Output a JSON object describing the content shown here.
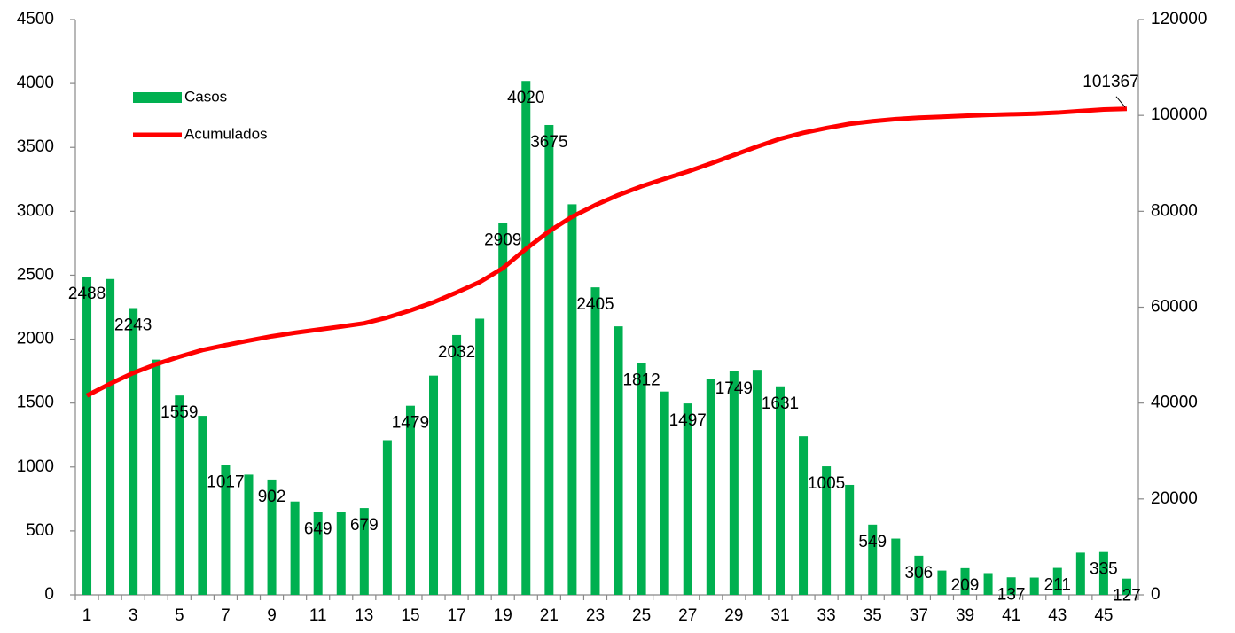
{
  "chart_data": {
    "type": "bar_line",
    "categories": [
      "1",
      null,
      "3",
      null,
      "5",
      null,
      "7",
      null,
      "9",
      null,
      "11",
      null,
      "13",
      null,
      "15",
      null,
      "17",
      null,
      "19",
      null,
      "21",
      null,
      "23",
      null,
      "25",
      null,
      "27",
      null,
      "29",
      null,
      "31",
      null,
      "33",
      null,
      "35",
      null,
      "37",
      null,
      "39",
      null,
      "41",
      null,
      "43",
      null,
      "45",
      null
    ],
    "series": [
      {
        "name": "Casos",
        "color": "#00b050",
        "kind": "bar",
        "values": [
          2488,
          2470,
          2243,
          1840,
          1559,
          1400,
          1017,
          940,
          902,
          730,
          649,
          650,
          679,
          1210,
          1479,
          1715,
          2032,
          2160,
          2909,
          4020,
          3675,
          3055,
          2405,
          2100,
          1812,
          1590,
          1497,
          1690,
          1749,
          1760,
          1631,
          1240,
          1005,
          860,
          549,
          440,
          306,
          190,
          209,
          170,
          137,
          135,
          211,
          330,
          335,
          127
        ],
        "value_labels": [
          "2488",
          null,
          "2243",
          null,
          "1559",
          null,
          "1017",
          null,
          "902",
          null,
          "649",
          null,
          "679",
          null,
          "1479",
          null,
          "2032",
          null,
          "2909",
          "4020",
          "3675",
          null,
          "2405",
          null,
          "1812",
          null,
          "1497",
          null,
          "1749",
          null,
          "1631",
          null,
          "1005",
          null,
          "549",
          null,
          "306",
          null,
          "209",
          null,
          "137",
          null,
          "211",
          null,
          "335",
          "127"
        ]
      },
      {
        "name": "Acumulados",
        "color": "#ff0000",
        "kind": "line",
        "axis": "y2",
        "values": [
          41550,
          44025,
          46268,
          48108,
          49667,
          51067,
          52084,
          53024,
          53926,
          54656,
          55305,
          55955,
          56634,
          57844,
          59323,
          61038,
          63070,
          65230,
          68139,
          72159,
          75834,
          78889,
          81294,
          83394,
          85206,
          86796,
          88293,
          89983,
          91732,
          93492,
          95123,
          96363,
          97368,
          98228,
          98777,
          99217,
          99523,
          99713,
          99922,
          100092,
          100229,
          100364,
          100575,
          100905,
          101240,
          101367
        ],
        "value_labels": [
          null,
          null,
          null,
          null,
          null,
          null,
          null,
          null,
          null,
          null,
          null,
          null,
          null,
          null,
          null,
          null,
          null,
          null,
          null,
          null,
          null,
          null,
          null,
          null,
          null,
          null,
          null,
          null,
          null,
          null,
          null,
          null,
          null,
          null,
          null,
          null,
          null,
          null,
          null,
          null,
          null,
          null,
          null,
          null,
          null,
          "101367"
        ]
      }
    ],
    "ylim": [
      0,
      4500
    ],
    "yticks": [
      0,
      500,
      1000,
      1500,
      2000,
      2500,
      3000,
      3500,
      4000,
      4500
    ],
    "y2lim": [
      0,
      120000
    ],
    "y2ticks": [
      0,
      20000,
      40000,
      60000,
      80000,
      100000,
      120000
    ],
    "grid": false,
    "legend": "top-left"
  }
}
